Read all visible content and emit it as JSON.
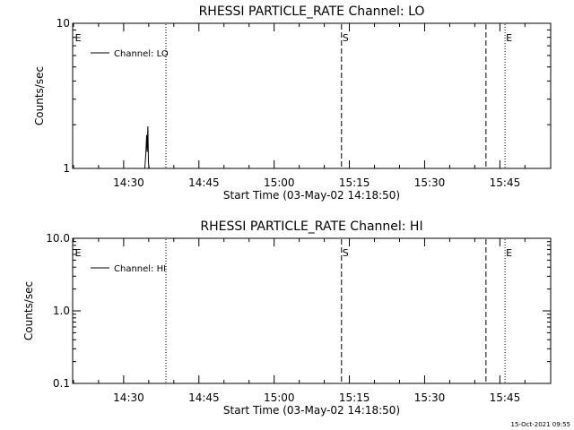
{
  "chart_data": [
    {
      "type": "line",
      "title": "RHESSI PARTICLE_RATE Channel: LO",
      "xlabel": "Start Time (03-May-02 14:18:50)",
      "ylabel": "Counts/sec",
      "x_unit": "minutes after 14:18:50",
      "xlim": [
        0,
        95.3
      ],
      "ylim": [
        1,
        10
      ],
      "yscale": "log",
      "x_ticks": [
        {
          "label": "14:30",
          "x": 11.17
        },
        {
          "label": "14:45",
          "x": 26.17
        },
        {
          "label": "15:00",
          "x": 41.17
        },
        {
          "label": "15:15",
          "x": 56.17
        },
        {
          "label": "15:30",
          "x": 71.17
        },
        {
          "label": "15:45",
          "x": 86.17
        }
      ],
      "y_ticks": [
        {
          "label": "10",
          "y": 10
        },
        {
          "label": "1",
          "y": 1
        }
      ],
      "legend": {
        "label": "Channel: LO",
        "placement": "top-left"
      },
      "series": [
        {
          "name": "Channel: LO",
          "x": [
            14.4,
            14.6,
            14.75,
            14.85,
            15.0,
            15.1,
            15.25
          ],
          "y": [
            1,
            1.3,
            1.7,
            1.3,
            1.95,
            1.1,
            1
          ]
        }
      ],
      "event_markers": [
        {
          "label": "E",
          "x": 0.3,
          "style": "none"
        },
        {
          "label": "",
          "x": 18.6,
          "style": "dotted"
        },
        {
          "label": "S",
          "x": 53.6,
          "style": "dashed"
        },
        {
          "label": "",
          "x": 82.4,
          "style": "dashed"
        },
        {
          "label": "E",
          "x": 86.2,
          "style": "dotted"
        },
        {
          "label": "",
          "x": 103.7,
          "style": "dotted"
        }
      ]
    },
    {
      "type": "line",
      "title": "RHESSI PARTICLE_RATE Channel: HI",
      "xlabel": "Start Time (03-May-02 14:18:50)",
      "ylabel": "Counts/sec",
      "x_unit": "minutes after 14:18:50",
      "xlim": [
        0,
        95.3
      ],
      "ylim": [
        0.1,
        10
      ],
      "yscale": "log",
      "x_ticks": [
        {
          "label": "14:30",
          "x": 11.17
        },
        {
          "label": "14:45",
          "x": 26.17
        },
        {
          "label": "15:00",
          "x": 41.17
        },
        {
          "label": "15:15",
          "x": 56.17
        },
        {
          "label": "15:30",
          "x": 71.17
        },
        {
          "label": "15:45",
          "x": 86.17
        }
      ],
      "y_ticks": [
        {
          "label": "10.0",
          "y": 10
        },
        {
          "label": "1.0",
          "y": 1
        },
        {
          "label": "0.1",
          "y": 0.1
        }
      ],
      "legend": {
        "label": "Channel: HI",
        "placement": "top-left"
      },
      "series": [
        {
          "name": "Channel: HI",
          "x": [],
          "y": []
        }
      ],
      "event_markers": [
        {
          "label": "E",
          "x": 0.3,
          "style": "none"
        },
        {
          "label": "",
          "x": 18.6,
          "style": "dotted"
        },
        {
          "label": "S",
          "x": 53.6,
          "style": "dashed"
        },
        {
          "label": "",
          "x": 82.4,
          "style": "dashed"
        },
        {
          "label": "E",
          "x": 86.2,
          "style": "dotted"
        },
        {
          "label": "",
          "x": 103.7,
          "style": "dotted"
        }
      ]
    }
  ],
  "footer": {
    "timestamp": "15-Oct-2021 09:55"
  }
}
